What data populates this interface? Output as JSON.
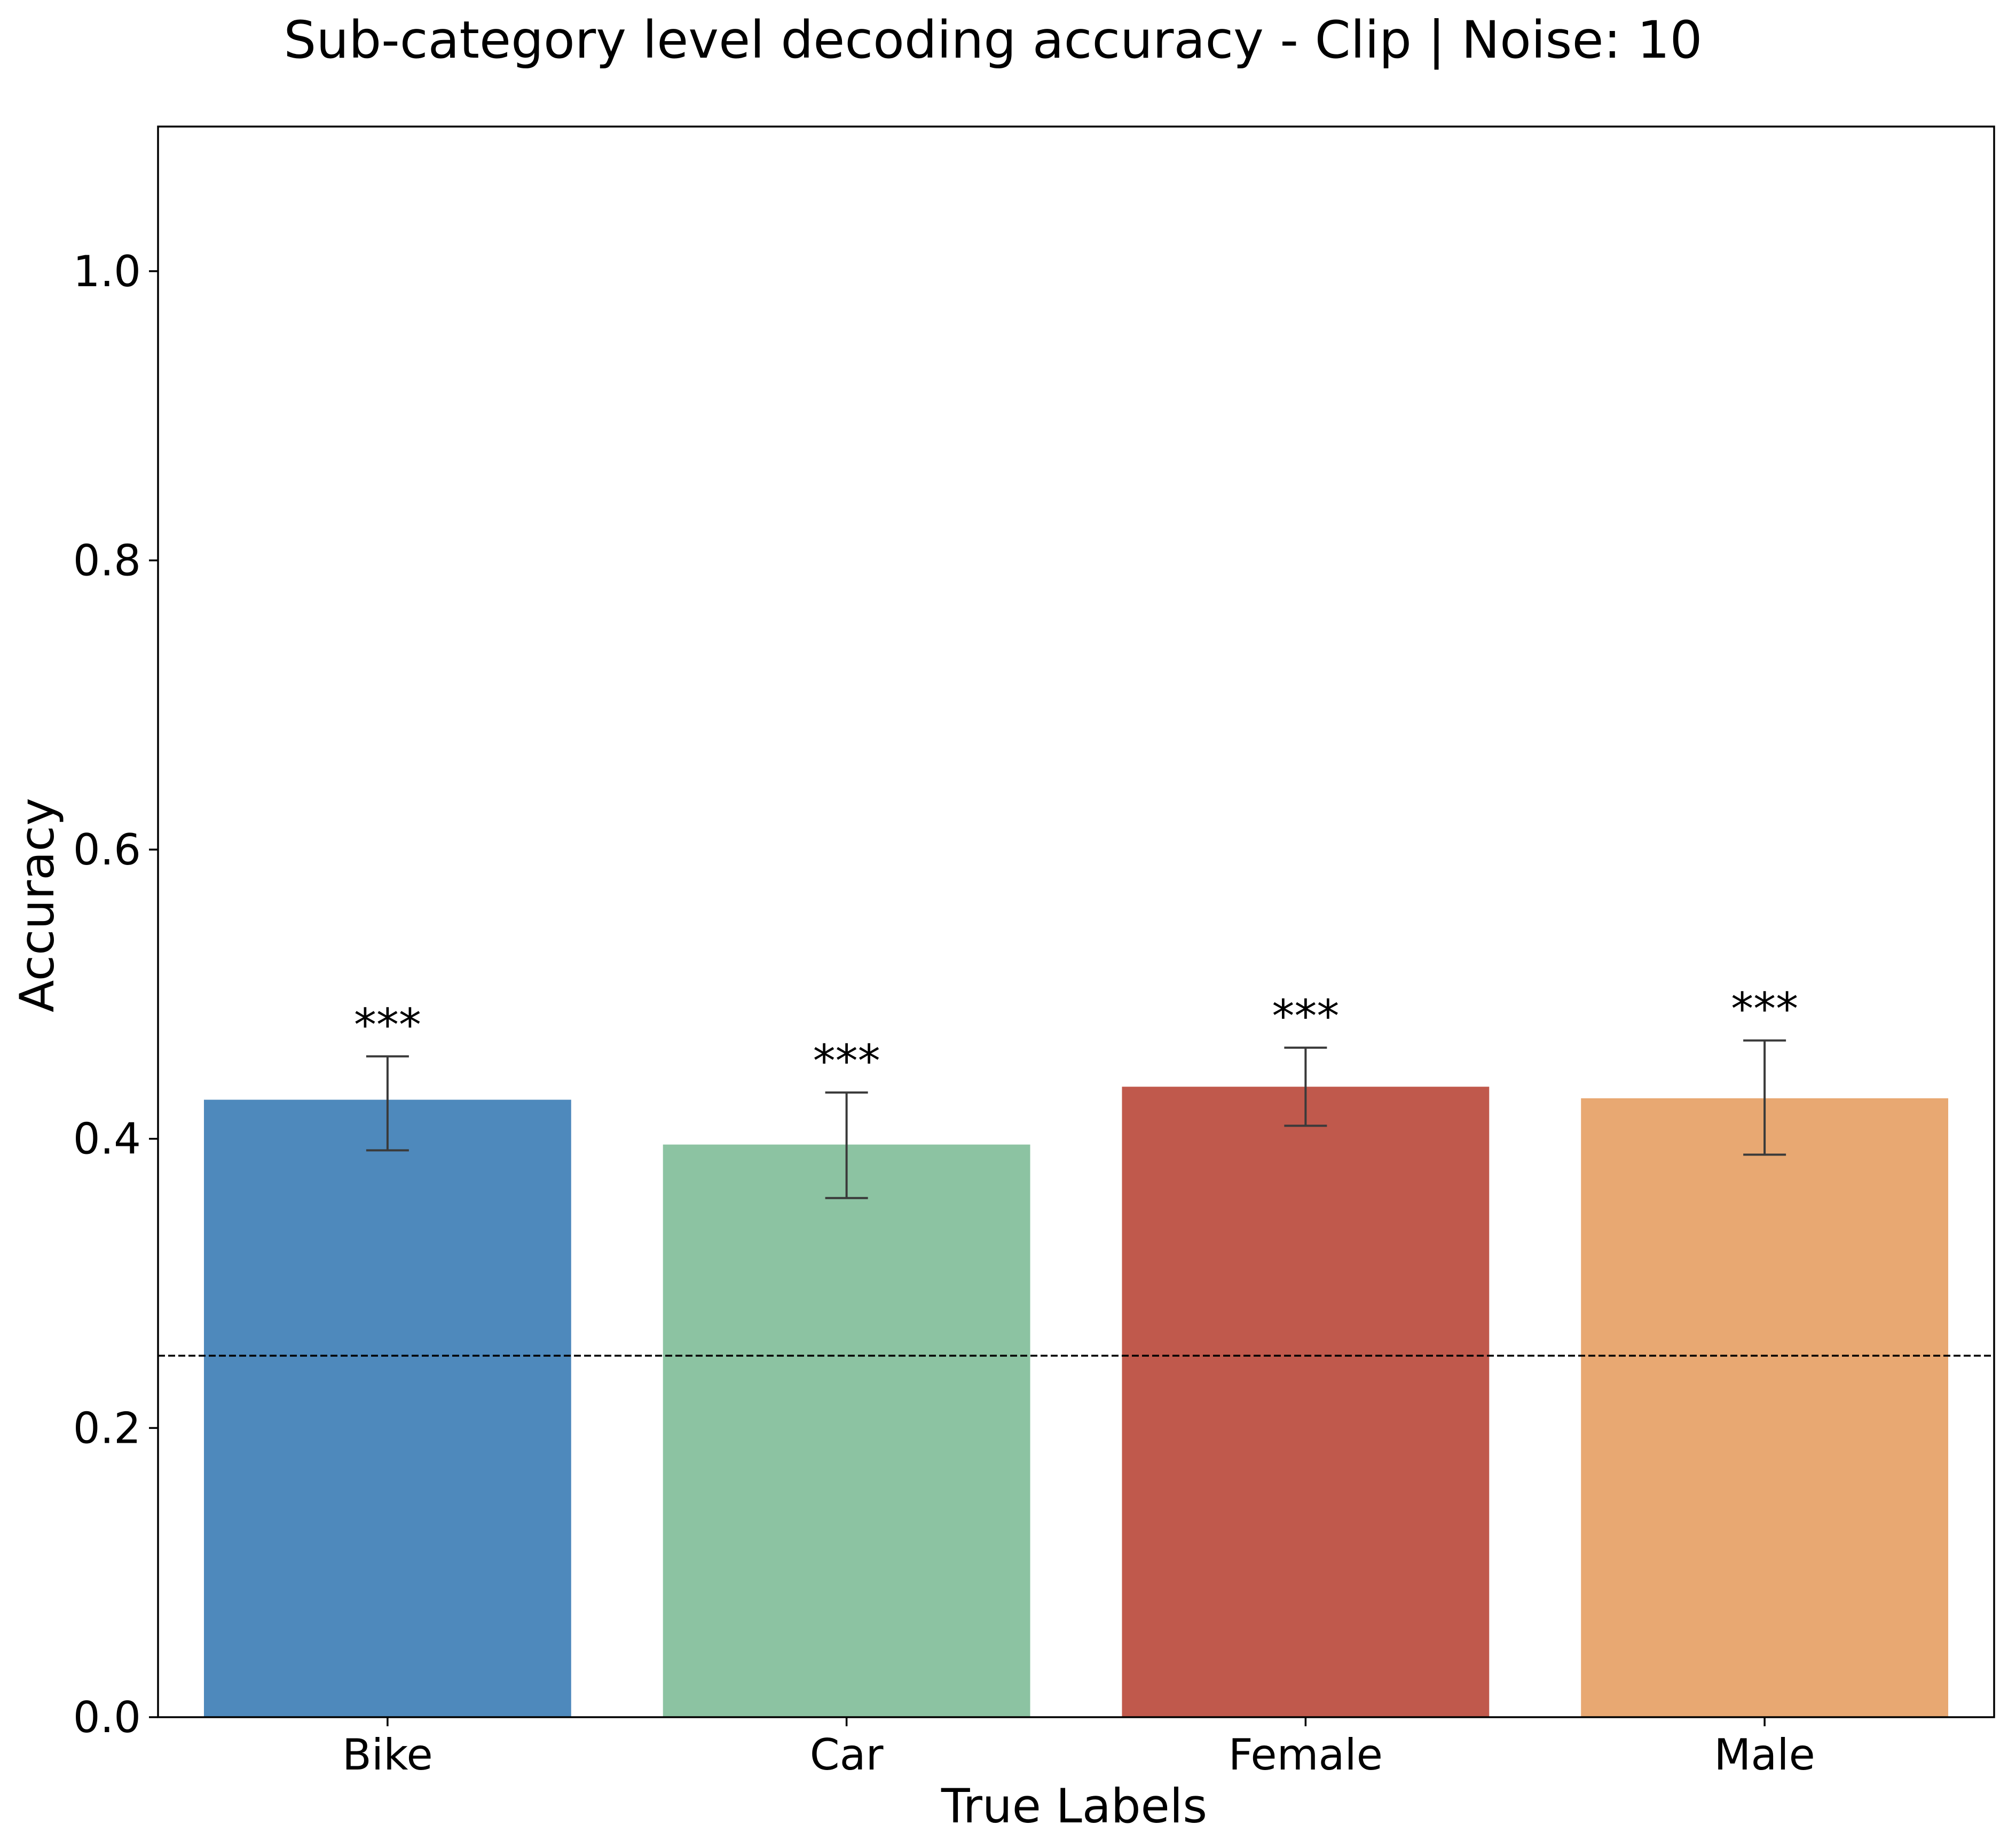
{
  "chart_data": {
    "type": "bar",
    "title": "Sub-category level decoding accuracy - Clip | Noise: 10",
    "xlabel": "True Labels",
    "ylabel": "Accuracy",
    "categories": [
      "Bike",
      "Car",
      "Female",
      "Male"
    ],
    "values": [
      0.427,
      0.396,
      0.436,
      0.428
    ],
    "error_low": [
      0.392,
      0.359,
      0.409,
      0.389
    ],
    "error_high": [
      0.457,
      0.432,
      0.463,
      0.468
    ],
    "annotations": [
      "***",
      "***",
      "***",
      "***"
    ],
    "colors": [
      "#4e89bc",
      "#8cc3a2",
      "#c0594c",
      "#e8a872"
    ],
    "ylim": [
      0,
      1.1
    ],
    "yticks": [
      "0.0",
      "0.2",
      "0.4",
      "0.6",
      "0.8",
      "1.0"
    ],
    "chance_level": 0.25,
    "grid": false
  }
}
